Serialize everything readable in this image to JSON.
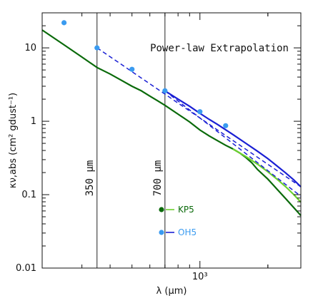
{
  "chart_data": {
    "type": "line",
    "title": "Power-law Extrapolation",
    "xlabel": "λ (μm)",
    "ylabel": "κν,abs (cm² gdust⁻¹)",
    "xscale": "log",
    "yscale": "log",
    "xlim": [
      200,
      2800
    ],
    "ylim": [
      0.01,
      30
    ],
    "y_tick_labels": [
      {
        "value": 0.01,
        "label": "0.01"
      },
      {
        "value": 0.1,
        "label": "0.1"
      },
      {
        "value": 1,
        "label": "1"
      },
      {
        "value": 10,
        "label": "10"
      }
    ],
    "x_tick_labels": [
      {
        "value": 1000,
        "label": "10³"
      }
    ],
    "vertical_lines": [
      {
        "x": 350,
        "label": "350 μm"
      },
      {
        "x": 700,
        "label": "700 μm"
      }
    ],
    "series": [
      {
        "name": "KP5",
        "color": "#0a6a0a",
        "style": "solid",
        "x": [
          200,
          250,
          300,
          350,
          400,
          450,
          500,
          550,
          600,
          650,
          700,
          800,
          900,
          1000,
          1100,
          1200,
          1300,
          1400,
          1500,
          1600,
          1700,
          1800,
          2000,
          2200,
          2400,
          2600,
          2800
        ],
        "y": [
          17.5,
          11.0,
          7.5,
          5.4,
          4.4,
          3.6,
          3.0,
          2.6,
          2.2,
          1.9,
          1.65,
          1.25,
          0.98,
          0.76,
          0.63,
          0.54,
          0.47,
          0.42,
          0.37,
          0.32,
          0.27,
          0.22,
          0.163,
          0.118,
          0.088,
          0.067,
          0.052
        ]
      },
      {
        "name": "KP5 power-law",
        "color": "#6cd12f",
        "style": "solid",
        "x": [
          1400,
          1600,
          1800,
          2000,
          2200,
          2400,
          2600,
          2800
        ],
        "y": [
          0.42,
          0.33,
          0.26,
          0.205,
          0.162,
          0.128,
          0.101,
          0.079
        ]
      },
      {
        "name": "OH5",
        "color": "#1a1fd4",
        "style": "solid",
        "x": [
          700,
          800,
          900,
          1000,
          1100,
          1200,
          1400,
          1600,
          1800,
          2000,
          2200,
          2400,
          2600,
          2800
        ],
        "y": [
          2.6,
          2.0,
          1.6,
          1.28,
          1.06,
          0.9,
          0.66,
          0.5,
          0.39,
          0.31,
          0.245,
          0.197,
          0.16,
          0.128
        ]
      },
      {
        "name": "OH5 extrapolation 350",
        "color": "#1a1fd4",
        "style": "dashed",
        "x": [
          350,
          2800
        ],
        "y": [
          10.0,
          0.128
        ]
      },
      {
        "name": "OH5 extrapolation 700",
        "color": "#1a1fd4",
        "style": "dashed",
        "x": [
          700,
          2800
        ],
        "y": [
          2.6,
          0.095
        ]
      }
    ],
    "points": {
      "name": "OH5",
      "color": "#3a9bf0",
      "x": [
        250,
        350,
        500,
        700,
        1000,
        1300
      ],
      "y": [
        22.0,
        10.0,
        5.1,
        2.6,
        1.35,
        0.87
      ]
    },
    "legend": [
      {
        "label": "KP5",
        "color": "#0a6a0a",
        "line_color": "#6cd12f"
      },
      {
        "label": "OH5",
        "color": "#3a9bf0",
        "line_color": "#1a1fd4"
      }
    ],
    "legend_placement": "lower-center"
  }
}
